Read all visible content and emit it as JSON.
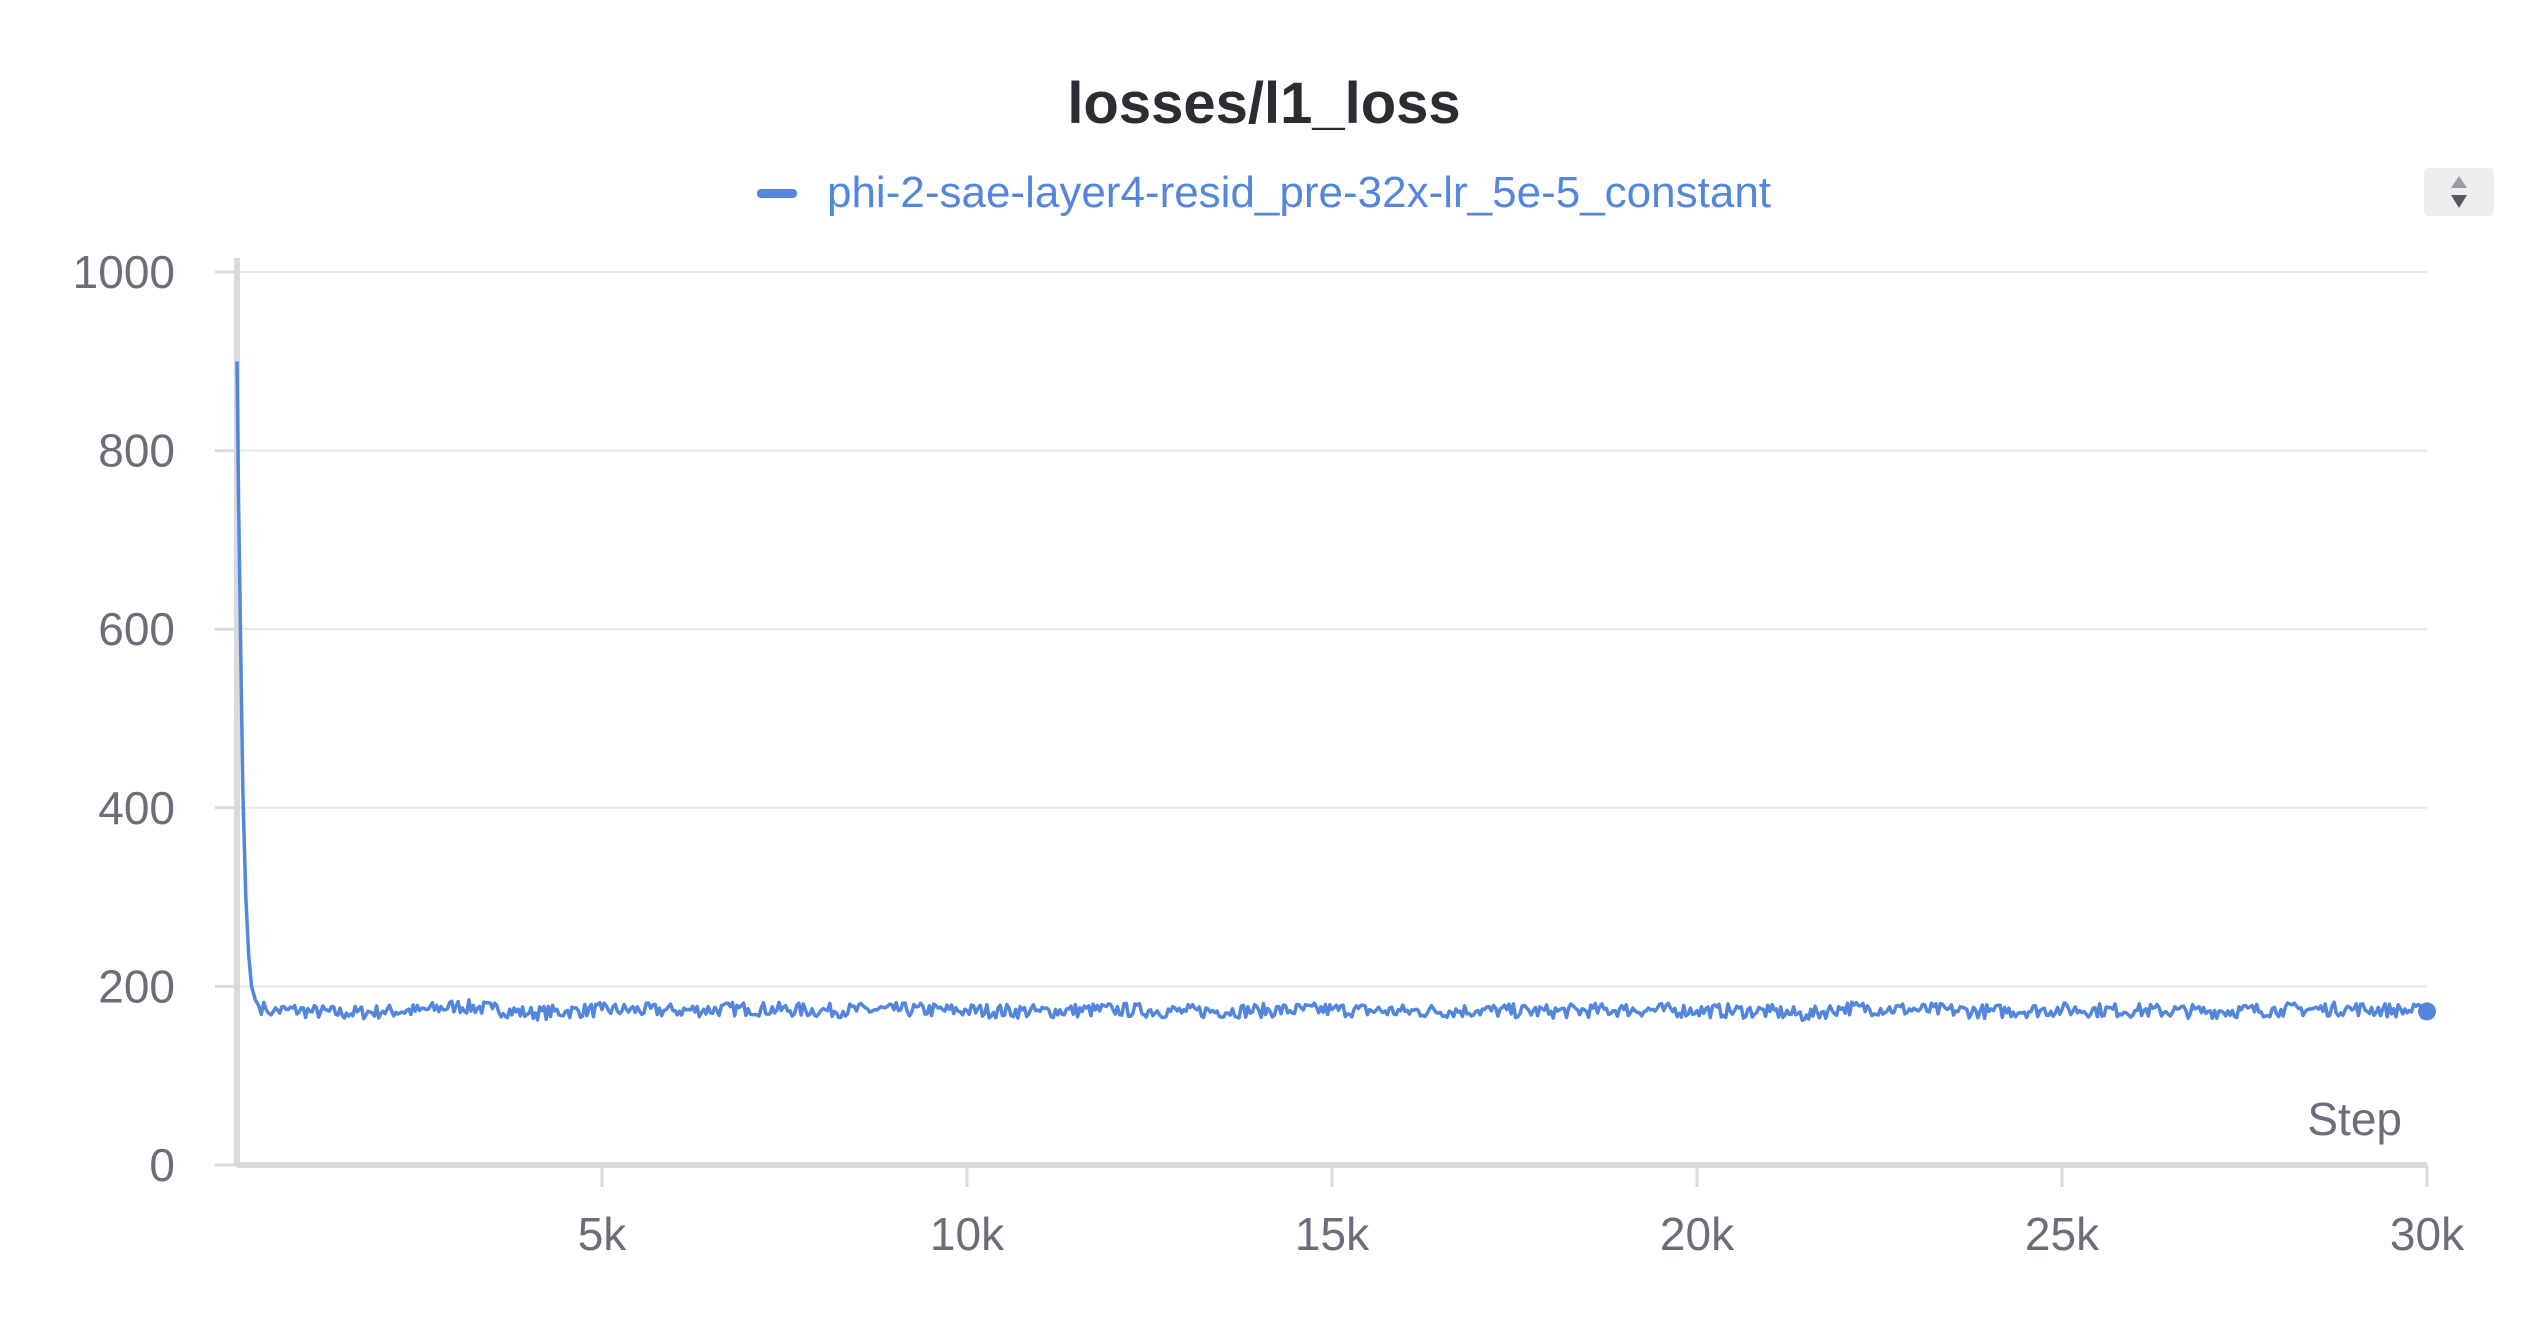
{
  "chart_data": {
    "type": "line",
    "title": "losses/l1_loss",
    "xlabel": "Step",
    "ylabel": "",
    "xlim": [
      0,
      30000
    ],
    "ylim": [
      0,
      1000
    ],
    "x_ticks": [
      5000,
      10000,
      15000,
      20000,
      25000,
      30000
    ],
    "x_tick_labels": [
      "5k",
      "10k",
      "15k",
      "20k",
      "25k",
      "30k"
    ],
    "y_ticks": [
      0,
      200,
      400,
      600,
      800,
      1000
    ],
    "y_tick_labels": [
      "0",
      "200",
      "400",
      "600",
      "800",
      "1000"
    ],
    "grid": true,
    "legend_position": "top-center",
    "series": [
      {
        "name": "phi-2-sae-layer4-resid_pre-32x-lr_5e-5_constant",
        "color": "#5387dd",
        "x": [
          0,
          20,
          50,
          80,
          120,
          160,
          200,
          250,
          300,
          400,
          500,
          700,
          1000,
          1500,
          2000,
          2500,
          3000,
          3500,
          4000,
          4500,
          5000,
          6000,
          7000,
          8000,
          9000,
          10000,
          11000,
          12000,
          13000,
          14000,
          15000,
          16000,
          17000,
          18000,
          19000,
          20000,
          21000,
          21500,
          22000,
          23000,
          24000,
          25000,
          26000,
          27000,
          28000,
          29000,
          30000
        ],
        "y": [
          900,
          750,
          580,
          420,
          300,
          235,
          200,
          185,
          178,
          174,
          172,
          174,
          172,
          170,
          172,
          173,
          178,
          175,
          170,
          172,
          174,
          173,
          175,
          173,
          174,
          173,
          172,
          174,
          172,
          173,
          174,
          172,
          173,
          172,
          174,
          173,
          172,
          168,
          176,
          174,
          172,
          174,
          173,
          172,
          174,
          175,
          172
        ]
      }
    ]
  }
}
